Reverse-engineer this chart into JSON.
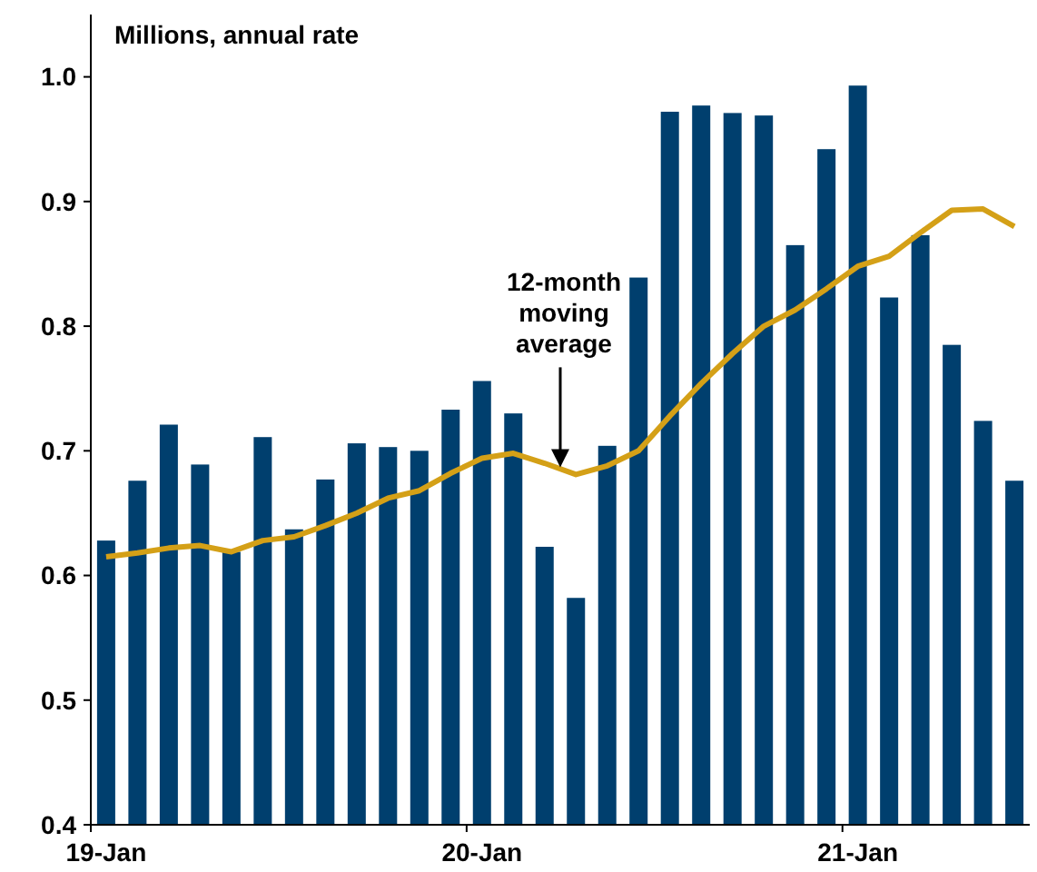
{
  "chart_data": {
    "type": "bar",
    "ylabel": "Millions, annual rate",
    "categories": [
      "19-Jan",
      null,
      null,
      null,
      null,
      null,
      null,
      null,
      null,
      null,
      null,
      null,
      "20-Jan",
      null,
      null,
      null,
      null,
      null,
      null,
      null,
      null,
      null,
      null,
      null,
      "21-Jan",
      null,
      null,
      null,
      null,
      null
    ],
    "series": [
      {
        "color": "#003f6e",
        "values": [
          0.628,
          0.676,
          0.721,
          0.689,
          0.619,
          0.711,
          0.637,
          0.677,
          0.706,
          0.703,
          0.7,
          0.733,
          0.756,
          0.73,
          0.623,
          0.582,
          0.704,
          0.839,
          0.972,
          0.977,
          0.971,
          0.969,
          0.865,
          0.942,
          0.993,
          0.823,
          0.873,
          0.785,
          0.724,
          0.676
        ]
      },
      {
        "type": "line",
        "name": "12-month\nmoving\naverage",
        "color": "#d4a017",
        "values": [
          0.615,
          0.618,
          0.622,
          0.624,
          0.619,
          0.628,
          0.631,
          0.64,
          0.65,
          0.662,
          0.668,
          0.682,
          0.694,
          0.698,
          0.69,
          0.681,
          0.688,
          0.7,
          0.728,
          0.754,
          0.778,
          0.8,
          0.813,
          0.83,
          0.848,
          0.856,
          0.875,
          0.893,
          0.894,
          0.88
        ]
      }
    ],
    "ylim": [
      0.4,
      1.05
    ],
    "yticks": [
      0.4,
      0.5,
      0.6,
      0.7,
      0.8,
      0.9,
      {
        "value": 1,
        "label": "1.0"
      }
    ],
    "grid": false,
    "legend": false
  }
}
